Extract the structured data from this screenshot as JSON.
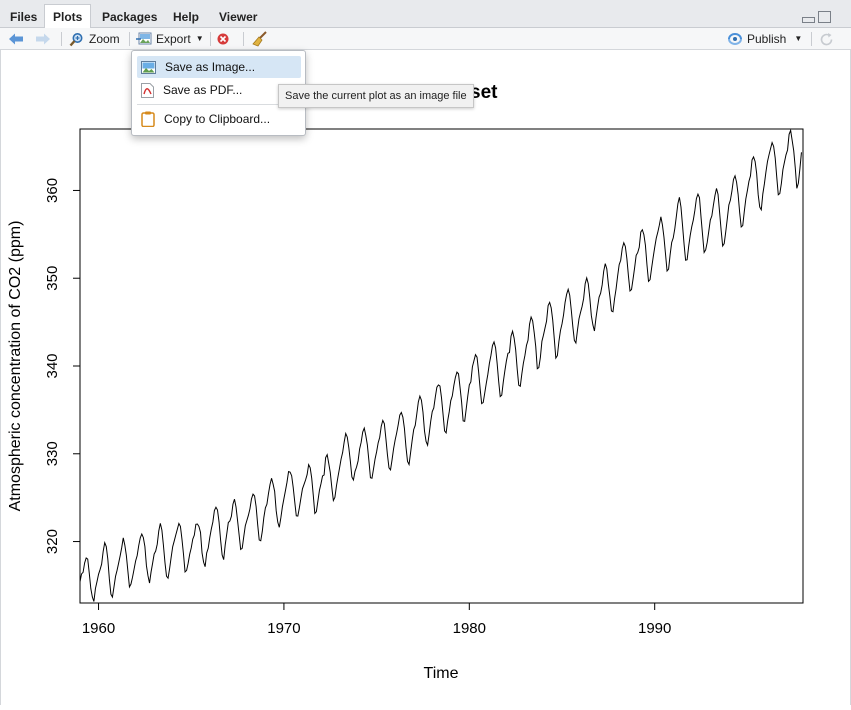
{
  "tabs": [
    "Files",
    "Plots",
    "Packages",
    "Help",
    "Viewer"
  ],
  "active_tab": "Plots",
  "toolbar": {
    "zoom_label": "Zoom",
    "export_label": "Export",
    "publish_label": "Publish"
  },
  "export_menu": {
    "items": [
      "Save as Image...",
      "Save as PDF...",
      "Copy to Clipboard..."
    ],
    "highlighted": "Save as Image..."
  },
  "tooltip": "Save the current plot as an image file",
  "chart_data": {
    "type": "line",
    "title": "CO2 Dataset",
    "xlabel": "Time",
    "ylabel": "Atmospheric concentration of CO2 (ppm)",
    "xlim": [
      1959,
      1998
    ],
    "ylim": [
      313,
      367
    ],
    "xticks": [
      1960,
      1970,
      1980,
      1990
    ],
    "yticks": [
      320,
      330,
      340,
      350,
      360
    ],
    "series": [
      {
        "start": 1959,
        "frequency": 12,
        "values": [
          315.42,
          316.31,
          316.5,
          317.56,
          318.13,
          318.0,
          316.39,
          314.65,
          313.68,
          313.18,
          314.66,
          315.43,
          316.27,
          316.81,
          317.42,
          318.87,
          319.87,
          319.43,
          318.01,
          315.74,
          314.0,
          313.68,
          314.84,
          316.03,
          316.73,
          317.54,
          318.38,
          319.31,
          320.42,
          319.61,
          318.42,
          316.63,
          314.83,
          315.16,
          315.94,
          316.85,
          317.78,
          318.4,
          319.53,
          320.42,
          320.85,
          320.45,
          319.45,
          317.25,
          316.11,
          315.27,
          316.53,
          317.53,
          318.58,
          318.92,
          319.7,
          321.22,
          322.08,
          321.31,
          319.58,
          317.61,
          316.05,
          315.83,
          316.91,
          318.2,
          319.41,
          320.07,
          320.74,
          321.4,
          322.06,
          321.73,
          320.27,
          318.54,
          316.54,
          316.71,
          317.53,
          318.55,
          319.27,
          320.28,
          320.73,
          321.97,
          322.0,
          321.71,
          321.05,
          318.71,
          317.66,
          317.14,
          318.7,
          319.25,
          320.46,
          321.43,
          322.23,
          323.54,
          323.91,
          323.59,
          322.24,
          320.2,
          318.48,
          317.94,
          319.63,
          320.87,
          322.17,
          322.34,
          322.88,
          324.25,
          324.83,
          323.93,
          322.38,
          320.76,
          319.1,
          319.24,
          320.56,
          321.8,
          322.4,
          322.99,
          323.73,
          324.86,
          325.4,
          325.2,
          323.98,
          321.95,
          320.18,
          320.09,
          321.16,
          322.74,
          323.83,
          324.26,
          325.47,
          326.5,
          327.21,
          326.54,
          325.72,
          323.5,
          322.22,
          321.62,
          322.69,
          323.95,
          324.89,
          325.82,
          326.77,
          327.97,
          327.91,
          327.5,
          326.18,
          324.53,
          322.93,
          322.9,
          323.85,
          324.96,
          326.01,
          326.51,
          327.01,
          327.62,
          328.76,
          328.4,
          327.2,
          325.27,
          323.2,
          323.4,
          324.63,
          325.85,
          326.6,
          327.47,
          327.58,
          329.56,
          329.9,
          328.92,
          327.88,
          326.16,
          324.68,
          325.04,
          326.34,
          327.39,
          328.37,
          329.4,
          330.14,
          331.33,
          332.31,
          331.9,
          330.7,
          329.15,
          327.35,
          327.02,
          327.99,
          328.48,
          329.18,
          330.55,
          331.32,
          332.48,
          332.92,
          332.08,
          331.01,
          329.23,
          327.27,
          327.21,
          328.29,
          329.41,
          330.23,
          331.25,
          331.87,
          333.14,
          333.8,
          333.43,
          331.73,
          329.9,
          328.4,
          328.17,
          329.32,
          330.59,
          331.58,
          332.39,
          333.33,
          334.41,
          334.71,
          334.17,
          332.89,
          330.77,
          329.14,
          328.78,
          330.14,
          331.52,
          332.75,
          333.24,
          334.53,
          335.9,
          336.57,
          336.1,
          334.76,
          332.59,
          331.42,
          330.98,
          332.24,
          333.68,
          334.8,
          335.22,
          336.47,
          337.59,
          337.84,
          337.72,
          336.37,
          334.51,
          332.6,
          332.38,
          333.75,
          334.78,
          336.05,
          336.59,
          337.79,
          338.71,
          339.3,
          339.12,
          337.56,
          335.92,
          333.75,
          333.7,
          335.12,
          336.56,
          337.84,
          338.19,
          339.91,
          340.6,
          341.29,
          341.0,
          339.39,
          337.43,
          335.72,
          335.84,
          336.93,
          338.04,
          339.06,
          340.3,
          341.21,
          342.33,
          342.74,
          342.08,
          340.32,
          338.26,
          336.52,
          336.68,
          338.19,
          339.44,
          340.57,
          341.44,
          341.53,
          343.39,
          343.96,
          343.18,
          341.88,
          339.65,
          337.81,
          337.69,
          339.09,
          340.32,
          341.2,
          342.35,
          342.93,
          344.77,
          345.58,
          345.14,
          343.81,
          342.21,
          339.69,
          339.82,
          340.98,
          342.82,
          343.52,
          344.33,
          345.11,
          346.88,
          347.25,
          346.62,
          345.22,
          343.11,
          340.9,
          341.18,
          342.8,
          344.04,
          344.79,
          345.82,
          347.25,
          348.17,
          348.74,
          348.07,
          346.38,
          344.51,
          342.92,
          342.62,
          344.06,
          345.38,
          346.11,
          346.78,
          347.68,
          349.37,
          350.03,
          349.37,
          347.76,
          345.73,
          344.68,
          343.99,
          345.48,
          346.72,
          347.84,
          348.29,
          349.23,
          350.8,
          351.66,
          351.07,
          349.33,
          347.92,
          346.27,
          346.18,
          347.64,
          348.78,
          350.25,
          351.54,
          352.05,
          353.41,
          354.04,
          353.62,
          352.22,
          350.27,
          348.55,
          348.72,
          349.91,
          351.18,
          352.6,
          352.92,
          353.53,
          355.26,
          355.52,
          354.97,
          353.75,
          351.52,
          349.64,
          349.83,
          351.14,
          352.37,
          353.5,
          354.55,
          355.23,
          356.04,
          357.0,
          356.07,
          354.67,
          352.76,
          350.82,
          351.04,
          352.69,
          354.07,
          354.59,
          355.63,
          357.03,
          358.48,
          359.22,
          358.12,
          356.06,
          353.92,
          352.05,
          352.11,
          353.64,
          354.89,
          355.88,
          356.63,
          357.72,
          359.07,
          359.58,
          359.17,
          356.94,
          354.92,
          352.94,
          353.23,
          354.09,
          355.33,
          356.63,
          357.1,
          358.32,
          359.41,
          360.23,
          359.55,
          357.53,
          355.48,
          353.67,
          353.95,
          355.3,
          356.78,
          358.34,
          358.89,
          359.95,
          361.25,
          361.67,
          360.94,
          359.55,
          357.49,
          355.84,
          356.0,
          357.59,
          359.05,
          359.98,
          361.03,
          361.66,
          363.48,
          363.82,
          363.3,
          361.94,
          359.5,
          358.11,
          357.8,
          359.61,
          360.74,
          362.09,
          363.29,
          364.06,
          364.76,
          365.45,
          365.01,
          363.7,
          361.54,
          359.51,
          359.65,
          360.8,
          362.38,
          363.23,
          364.06,
          364.61,
          366.4,
          366.84,
          365.68,
          364.52,
          362.57,
          360.24,
          360.83,
          362.49,
          364.34
        ]
      }
    ]
  }
}
